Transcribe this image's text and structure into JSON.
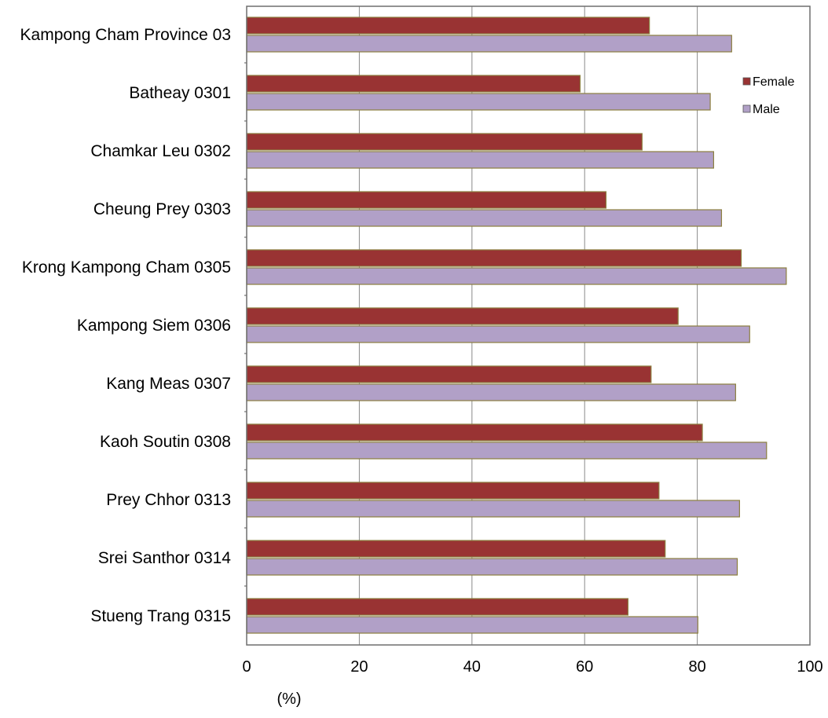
{
  "chart_data": {
    "type": "bar",
    "orientation": "horizontal",
    "categories": [
      "Kampong Cham Province 03",
      "Batheay 0301",
      "Chamkar Leu 0302",
      "Cheung Prey 0303",
      "Krong Kampong Cham 0305",
      "Kampong Siem 0306",
      "Kang Meas 0307",
      "Kaoh Soutin 0308",
      "Prey Chhor 0313",
      "Srei Santhor 0314",
      "Stueng Trang 0315"
    ],
    "series": [
      {
        "name": "Female",
        "color": "#993333",
        "values": [
          71.5,
          59.2,
          70.2,
          63.8,
          87.8,
          76.6,
          71.8,
          80.9,
          73.2,
          74.3,
          67.7
        ]
      },
      {
        "name": "Male",
        "color": "#b1a0c7",
        "values": [
          86.1,
          82.3,
          82.9,
          84.3,
          95.8,
          89.3,
          86.8,
          92.3,
          87.5,
          87.1,
          80.1
        ]
      }
    ],
    "title": "",
    "xlabel": "(%)",
    "ylabel": "",
    "xlim": [
      0,
      100
    ],
    "xticks": [
      0,
      20,
      40,
      60,
      80,
      100
    ],
    "grid": "vertical",
    "legend_position": "top-right",
    "bar_edge_color": "#8c7f3f"
  }
}
